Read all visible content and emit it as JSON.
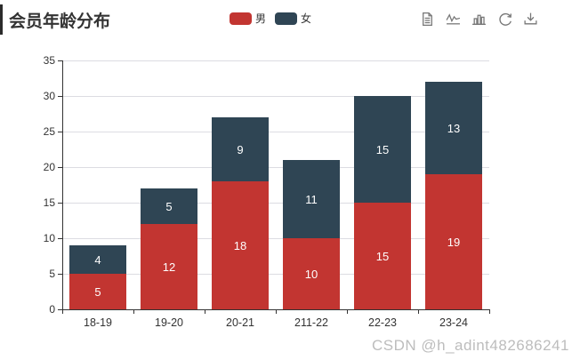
{
  "title": "会员年龄分布",
  "legend": {
    "items": [
      {
        "label": "男",
        "color": "#c23531"
      },
      {
        "label": "女",
        "color": "#2f4554"
      }
    ]
  },
  "toolbar": {
    "icons": [
      "data-view-icon",
      "line-chart-icon",
      "bar-chart-icon",
      "refresh-icon",
      "download-icon"
    ]
  },
  "watermark": "CSDN @h_adint482686241",
  "colors": {
    "male": "#c23531",
    "female": "#2f4554",
    "axis": "#333333",
    "gridline": "#dcdce2",
    "icon": "#767676",
    "bar_label": "#ffffff"
  },
  "chart_data": {
    "type": "bar",
    "stacked": true,
    "title": "会员年龄分布",
    "categories": [
      "18-19",
      "19-20",
      "20-21",
      "211-22",
      "22-23",
      "23-24"
    ],
    "series": [
      {
        "name": "男",
        "color": "#c23531",
        "values": [
          5,
          12,
          18,
          10,
          15,
          19
        ]
      },
      {
        "name": "女",
        "color": "#2f4554",
        "values": [
          4,
          5,
          9,
          11,
          15,
          13
        ]
      }
    ],
    "totals": [
      9,
      17,
      27,
      21,
      30,
      32
    ],
    "xlabel": "",
    "ylabel": "",
    "ylim": [
      0,
      35
    ],
    "ytick_step": 5,
    "yticks": [
      0,
      5,
      10,
      15,
      20,
      25,
      30,
      35
    ],
    "grid": true,
    "legend_position": "top-center",
    "value_labels": "inside-white"
  }
}
